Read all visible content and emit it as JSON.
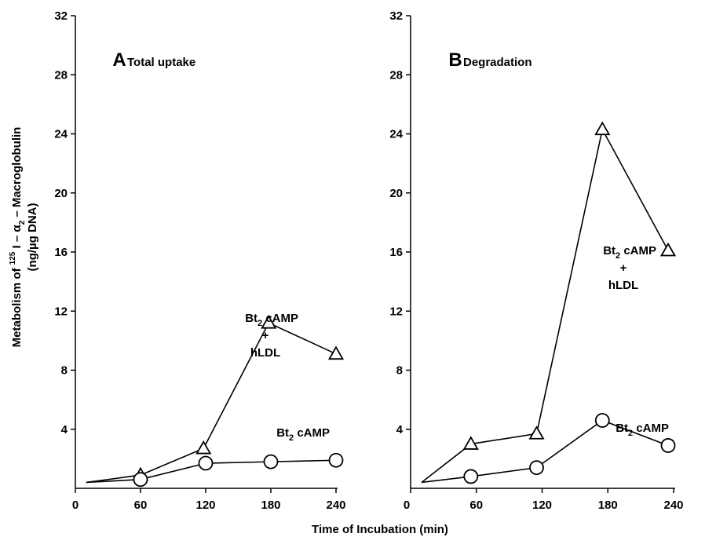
{
  "chart_data": [
    {
      "type": "line",
      "panel_letter": "A",
      "title": "Total uptake",
      "xlabel": "Time of Incubation (min)",
      "ylabel": "Metabolism of 125I - α2 - Macroglobulin (ng/µg DNA)",
      "xlim": [
        0,
        240
      ],
      "ylim": [
        0,
        32
      ],
      "xticks": [
        0,
        60,
        120,
        180,
        240
      ],
      "yticks": [
        4,
        8,
        12,
        16,
        20,
        24,
        28,
        32
      ],
      "grid": false,
      "series": [
        {
          "name": "Bt2 cAMP + hLDL",
          "label_lines": [
            "Bt2 cAMP",
            "+",
            "hLDL"
          ],
          "marker": "triangle",
          "x": [
            10,
            60,
            118,
            178,
            240
          ],
          "y": [
            0.4,
            0.9,
            2.7,
            11.2,
            9.1
          ]
        },
        {
          "name": "Bt2 cAMP",
          "label_lines": [
            "Bt2 cAMP"
          ],
          "marker": "circle",
          "x": [
            10,
            60,
            120,
            180,
            240
          ],
          "y": [
            0.4,
            0.6,
            1.7,
            1.8,
            1.9
          ]
        }
      ]
    },
    {
      "type": "line",
      "panel_letter": "B",
      "title": "Degradation",
      "xlabel": "Time of Incubation (min)",
      "ylabel": "",
      "xlim": [
        0,
        240
      ],
      "ylim": [
        0,
        32
      ],
      "xticks": [
        0,
        60,
        120,
        180,
        240
      ],
      "yticks": [
        4,
        8,
        12,
        16,
        20,
        24,
        28,
        32
      ],
      "grid": false,
      "series": [
        {
          "name": "Bt2 cAMP + hLDL",
          "label_lines": [
            "Bt2 cAMP",
            "+",
            "hLDL"
          ],
          "marker": "triangle",
          "x": [
            10,
            55,
            115,
            175,
            235
          ],
          "y": [
            0.4,
            3.0,
            3.7,
            24.3,
            16.1
          ]
        },
        {
          "name": "Bt2 cAMP",
          "label_lines": [
            "Bt2 cAMP"
          ],
          "marker": "circle",
          "x": [
            10,
            55,
            115,
            175,
            235
          ],
          "y": [
            0.4,
            0.8,
            1.4,
            4.6,
            2.9
          ]
        }
      ]
    }
  ],
  "shared_xlabel": "Time of Incubation (min)"
}
